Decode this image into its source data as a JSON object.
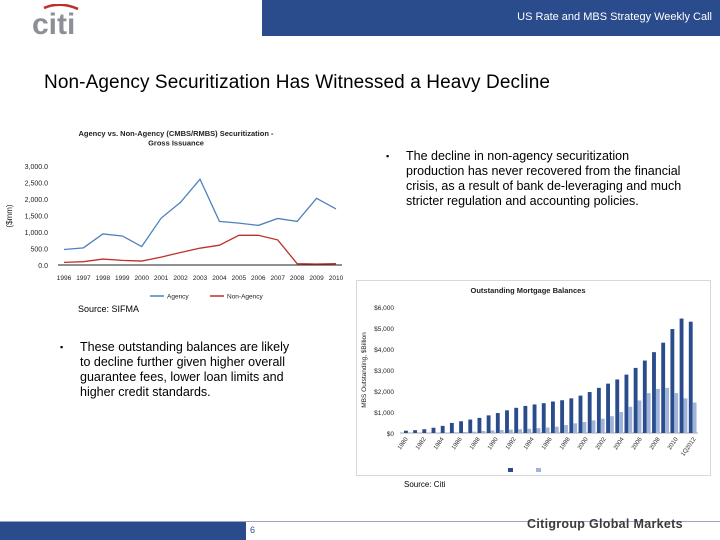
{
  "header": {
    "logo_text": "citi",
    "title": "US Rate and MBS Strategy Weekly Call"
  },
  "slide": {
    "title": "Non-Agency Securitization Has Witnessed a Heavy Decline",
    "bullet_right": "The decline in non-agency securitization production has never recovered from the financial crisis, as a result of bank de-leveraging and much stricter regulation and accounting policies.",
    "bullet_left": "These outstanding balances are likely to decline further given higher overall guarantee fees, lower loan limits and higher credit standards.",
    "source_left": "Source: SIFMA",
    "source_right": "Source: Citi",
    "page_number": "6",
    "brand": "Citigroup Global Markets",
    "colors": {
      "bar_navy": "#2a4b8c",
      "accent_red": "#c0302a",
      "line_blue": "#4f81bd"
    }
  },
  "chart_data": [
    {
      "type": "line",
      "title": "Agency vs. Non-Agency (CMBS/RMBS) Securitization - Gross Issuance",
      "ylabel": "($mm)",
      "xlabel": "",
      "ylim": [
        0,
        3000
      ],
      "yticks": [
        "0.0",
        "500.0",
        "1,000.0",
        "1,500.0",
        "2,000.0",
        "2,500.0",
        "3,000.0"
      ],
      "x": [
        "1996",
        "1997",
        "1998",
        "1999",
        "2000",
        "2001",
        "2002",
        "2003",
        "2004",
        "2005",
        "2006",
        "2007",
        "2008",
        "2009",
        "2010"
      ],
      "grid": false,
      "legend": "bottom",
      "series": [
        {
          "name": "Agency",
          "color": "#4f81bd",
          "values": [
            470,
            520,
            940,
            880,
            560,
            1420,
            1900,
            2600,
            1320,
            1270,
            1200,
            1410,
            1320,
            2020,
            1700
          ]
        },
        {
          "name": "Non-Agency",
          "color": "#c0302a",
          "values": [
            80,
            100,
            180,
            140,
            120,
            240,
            380,
            510,
            600,
            900,
            900,
            760,
            40,
            30,
            40
          ]
        }
      ]
    },
    {
      "type": "bar",
      "title": "Outstanding Mortgage Balances",
      "ylabel": "MBS Outstanding, $Billion",
      "xlabel": "",
      "ylim": [
        0,
        6000
      ],
      "yticks": [
        "$0",
        "$1,000",
        "$2,000",
        "$3,000",
        "$4,000",
        "$5,000",
        "$6,000"
      ],
      "x_tick_labels": [
        "1980",
        "1982",
        "1984",
        "1986",
        "1988",
        "1990",
        "1992",
        "1994",
        "1996",
        "1998",
        "2000",
        "2002",
        "2004",
        "2006",
        "2008",
        "2010",
        "1Q2012"
      ],
      "legend": "bottom",
      "series": [
        {
          "name": "",
          "color": "#2a4b8c",
          "values": [
            110,
            135,
            180,
            250,
            340,
            480,
            560,
            640,
            720,
            840,
            950,
            1080,
            1200,
            1290,
            1360,
            1420,
            1500,
            1560,
            1650,
            1780,
            1950,
            2150,
            2350,
            2550,
            2780,
            3100,
            3450,
            3850,
            4300,
            4950,
            5450,
            5300
          ]
        },
        {
          "name": "",
          "color": "#9fb4d8",
          "values": [
            5,
            8,
            10,
            15,
            25,
            35,
            50,
            65,
            95,
            120,
            140,
            160,
            180,
            200,
            230,
            260,
            300,
            380,
            460,
            520,
            600,
            680,
            800,
            1000,
            1250,
            1550,
            1900,
            2100,
            2150,
            1900,
            1650,
            1450
          ]
        }
      ]
    }
  ]
}
